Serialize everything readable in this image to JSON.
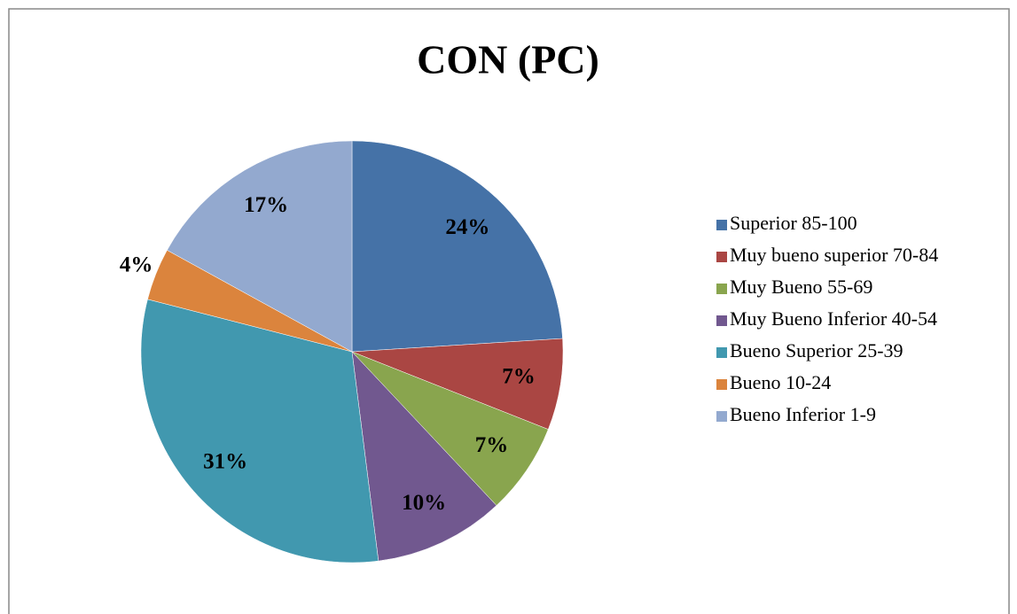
{
  "chart_data": {
    "type": "pie",
    "title": "CON (PC)",
    "categories": [
      "Superior 85-100",
      "Muy bueno superior 70-84",
      "Muy Bueno 55-69",
      "Muy Bueno Inferior 40-54",
      "Bueno Superior 25-39",
      "Bueno 10-24",
      "Bueno Inferior 1-9"
    ],
    "values": [
      24,
      7,
      7,
      10,
      31,
      4,
      17
    ],
    "value_labels": [
      "24%",
      "7%",
      "7%",
      "10%",
      "31%",
      "4%",
      "17%"
    ],
    "colors": [
      "#4572a7",
      "#aa4643",
      "#89a54e",
      "#71588f",
      "#4198af",
      "#db843d",
      "#93a9cf"
    ],
    "legend": "right"
  }
}
